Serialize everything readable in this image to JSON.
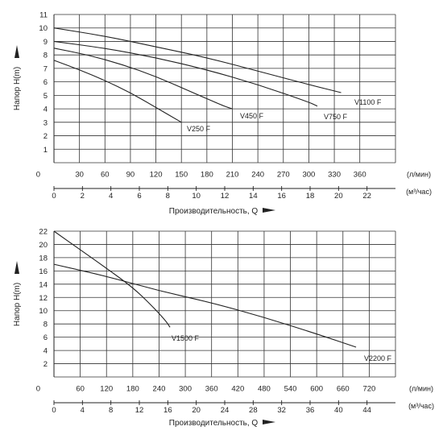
{
  "chart_data": [
    {
      "type": "line",
      "ylabel": "Напор H(m)",
      "xlabel": "Производительность, Q",
      "ylim": [
        0,
        11
      ],
      "y_ticks": [
        "1",
        "2",
        "3",
        "4",
        "5",
        "6",
        "7",
        "8",
        "9",
        "10",
        "11"
      ],
      "y_zero": "0",
      "grid": true,
      "x_lmin": {
        "unit": "(л/мин)",
        "lim": [
          0,
          402
        ],
        "ticks": [
          {
            "v": 30,
            "label": "30"
          },
          {
            "v": 60,
            "label": "60"
          },
          {
            "v": 90,
            "label": "90"
          },
          {
            "v": 120,
            "label": "120"
          },
          {
            "v": 150,
            "label": "150"
          },
          {
            "v": 180,
            "label": "180"
          },
          {
            "v": 210,
            "label": "210"
          },
          {
            "v": 240,
            "label": "240"
          },
          {
            "v": 270,
            "label": "270"
          },
          {
            "v": 300,
            "label": "300"
          },
          {
            "v": 330,
            "label": "330"
          },
          {
            "v": 360,
            "label": "360"
          }
        ]
      },
      "x_m3h": {
        "unit": "(м³/час)",
        "ticks": [
          "0",
          "2",
          "4",
          "6",
          "8",
          "10",
          "12",
          "14",
          "16",
          "18",
          "20",
          "22"
        ]
      },
      "series": [
        {
          "name": "V250 F",
          "points": [
            [
              0,
              7.6
            ],
            [
              30,
              6.9
            ],
            [
              60,
              6.1
            ],
            [
              90,
              5.2
            ],
            [
              120,
              4.1
            ],
            [
              150,
              3.0
            ]
          ]
        },
        {
          "name": "V450 F",
          "points": [
            [
              0,
              8.5
            ],
            [
              40,
              8.0
            ],
            [
              80,
              7.3
            ],
            [
              120,
              6.4
            ],
            [
              160,
              5.3
            ],
            [
              200,
              4.2
            ],
            [
              210,
              4.0
            ]
          ]
        },
        {
          "name": "V750 F",
          "points": [
            [
              0,
              9.0
            ],
            [
              60,
              8.5
            ],
            [
              120,
              7.8
            ],
            [
              180,
              6.9
            ],
            [
              240,
              5.8
            ],
            [
              300,
              4.5
            ],
            [
              310,
              4.2
            ]
          ]
        },
        {
          "name": "V1100 F",
          "points": [
            [
              0,
              10.0
            ],
            [
              60,
              9.4
            ],
            [
              120,
              8.6
            ],
            [
              180,
              7.8
            ],
            [
              240,
              6.8
            ],
            [
              300,
              5.8
            ],
            [
              338,
              5.2
            ]
          ]
        }
      ]
    },
    {
      "type": "line",
      "ylabel": "Напор H(m)",
      "xlabel": "Производительность, Q",
      "ylim": [
        0,
        22
      ],
      "y_ticks": [
        "2",
        "4",
        "6",
        "8",
        "10",
        "12",
        "14",
        "16",
        "18",
        "20",
        "22"
      ],
      "y_zero": "0",
      "grid": true,
      "x_lmin": {
        "unit": "(л/мин)",
        "lim": [
          0,
          780
        ],
        "ticks": [
          {
            "v": 60,
            "label": "60"
          },
          {
            "v": 120,
            "label": "120"
          },
          {
            "v": 180,
            "label": "180"
          },
          {
            "v": 240,
            "label": "240"
          },
          {
            "v": 300,
            "label": "300"
          },
          {
            "v": 360,
            "label": "360"
          },
          {
            "v": 420,
            "label": "420"
          },
          {
            "v": 480,
            "label": "480"
          },
          {
            "v": 540,
            "label": "540"
          },
          {
            "v": 600,
            "label": "600"
          },
          {
            "v": 660,
            "label": "660"
          },
          {
            "v": 720,
            "label": "720"
          }
        ]
      },
      "x_m3h": {
        "unit": "(м³/час)",
        "ticks": [
          "0",
          "4",
          "8",
          "12",
          "16",
          "20",
          "24",
          "28",
          "32",
          "36",
          "40",
          "44"
        ]
      },
      "series": [
        {
          "name": "V1500 F",
          "points": [
            [
              0,
              22.0
            ],
            [
              60,
              19.2
            ],
            [
              120,
              16.4
            ],
            [
              180,
              13.5
            ],
            [
              220,
              11.0
            ],
            [
              255,
              8.5
            ],
            [
              265,
              7.5
            ]
          ]
        },
        {
          "name": "V2200 F",
          "points": [
            [
              0,
              17.0
            ],
            [
              120,
              15.2
            ],
            [
              240,
              13.0
            ],
            [
              360,
              11.2
            ],
            [
              480,
              9.0
            ],
            [
              600,
              6.5
            ],
            [
              690,
              4.5
            ]
          ]
        }
      ]
    }
  ]
}
